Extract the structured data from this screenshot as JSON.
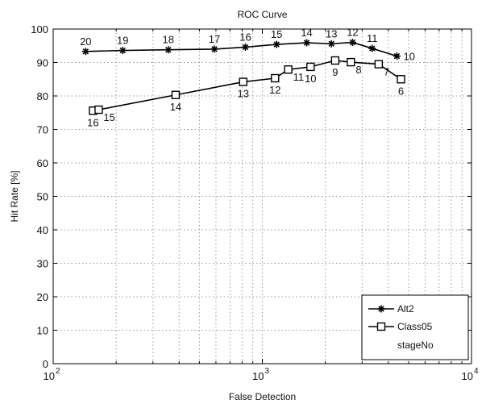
{
  "chart_data": {
    "type": "line",
    "title": "ROC Curve",
    "xlabel": "False Detection",
    "ylabel": "Hit Rate [%]",
    "xscale": "log",
    "xlim": [
      100,
      10000
    ],
    "ylim": [
      0,
      100
    ],
    "x_ticks": [
      100,
      1000,
      10000
    ],
    "x_tick_labels": [
      {
        "base": "10",
        "exp": "2"
      },
      {
        "base": "10",
        "exp": "3"
      },
      {
        "base": "10",
        "exp": "4"
      }
    ],
    "y_ticks": [
      0,
      10,
      20,
      30,
      40,
      50,
      60,
      70,
      80,
      90,
      100
    ],
    "y_tick_labels": [
      "0",
      "10",
      "20",
      "30",
      "40",
      "50",
      "60",
      "70",
      "80",
      "90",
      "100"
    ],
    "grid": true,
    "legend_position": "bottom-right",
    "legend_note": "stageNo",
    "series": [
      {
        "name": "Alt2",
        "marker": "star",
        "color": "#000000",
        "x": [
          143,
          215,
          355,
          590,
          830,
          1170,
          1630,
          2140,
          2700,
          3350,
          4400
        ],
        "y": [
          93.3,
          93.6,
          93.8,
          94.0,
          94.6,
          95.4,
          95.9,
          95.6,
          96.0,
          94.2,
          91.9
        ],
        "labels": [
          "20",
          "19",
          "18",
          "17",
          "16",
          "15",
          "14",
          "13",
          "12",
          "11",
          "10"
        ],
        "label_side": [
          "top",
          "top",
          "top",
          "top",
          "top",
          "top",
          "top",
          "top",
          "top",
          "top",
          "right"
        ]
      },
      {
        "name": "Class05",
        "marker": "square",
        "color": "#000000",
        "x": [
          155,
          165,
          385,
          810,
          1150,
          1330,
          1700,
          2230,
          2650,
          3600,
          4600
        ],
        "y": [
          75.6,
          75.9,
          80.3,
          84.2,
          85.3,
          87.9,
          88.7,
          90.6,
          90.1,
          89.5,
          85.0
        ],
        "labels": [
          "16",
          "15",
          "14",
          "13",
          "12",
          "11",
          "10",
          "9",
          "8",
          "7",
          "6"
        ],
        "label_side": [
          "bottom",
          "bottom-right",
          "bottom",
          "bottom",
          "bottom",
          "bottom-right",
          "bottom",
          "bottom",
          "bottom-right",
          "bottom-right",
          "bottom"
        ]
      }
    ]
  }
}
